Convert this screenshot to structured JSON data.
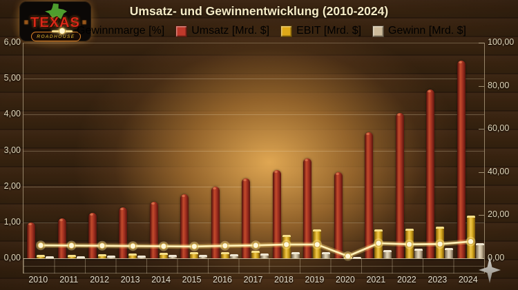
{
  "header": {
    "title": "Umsatz- und Gewinnentwicklung (2010-2024)"
  },
  "logo": {
    "brand": "TEXAS",
    "sub": "ROADHOUSE",
    "state_icon": "texas-state-icon"
  },
  "legend": [
    {
      "label": "Gewinnmarge [%]",
      "type": "line",
      "color": "#f2d98a",
      "slug": "gewinnmarge"
    },
    {
      "label": "Umsatz [Mrd. $]",
      "type": "box",
      "color": "#c0392b",
      "slug": "umsatz"
    },
    {
      "label": "EBIT [Mrd. $]",
      "type": "box",
      "color": "#dfa918",
      "slug": "ebit"
    },
    {
      "label": "Gewinn [Mrd. $]",
      "type": "box",
      "color": "#cdbb9b",
      "slug": "gewinn"
    }
  ],
  "axes": {
    "left_ticks": [
      "6,00",
      "5,00",
      "4,00",
      "3,00",
      "2,00",
      "1,00",
      "0,00"
    ],
    "right_ticks": [
      "100,00",
      "80,00",
      "60,00",
      "40,00",
      "20,00",
      "0,00"
    ],
    "left_range": [
      0,
      6
    ],
    "right_range": [
      0,
      100
    ],
    "grid": "horizontal"
  },
  "chart_data": {
    "type": "bar+line",
    "title": "Umsatz- und Gewinnentwicklung (2010-2024)",
    "categories": [
      2010,
      2011,
      2012,
      2013,
      2014,
      2015,
      2016,
      2017,
      2018,
      2019,
      2020,
      2021,
      2022,
      2023,
      2024
    ],
    "left_ylim": [
      0,
      6
    ],
    "right_ylim": [
      0,
      100
    ],
    "legend_position": "top",
    "series": [
      {
        "name": "Umsatz [Mrd. $]",
        "type": "bar",
        "axis": "left",
        "slug": "umsatz",
        "cls": "red",
        "color": "#b03a26",
        "values": [
          1.0,
          1.11,
          1.26,
          1.42,
          1.58,
          1.79,
          2.0,
          2.22,
          2.46,
          2.78,
          2.4,
          3.5,
          4.05,
          4.7,
          5.5
        ]
      },
      {
        "name": "EBIT [Mrd. $]",
        "type": "bar",
        "axis": "left",
        "slug": "ebit",
        "cls": "gold",
        "color": "#d9a81f",
        "values": [
          0.09,
          0.1,
          0.12,
          0.14,
          0.16,
          0.18,
          0.17,
          0.21,
          0.65,
          0.8,
          0.04,
          0.8,
          0.82,
          0.88,
          1.18
        ]
      },
      {
        "name": "Gewinn [Mrd. $]",
        "type": "bar",
        "axis": "left",
        "slug": "gewinn",
        "cls": "tan",
        "color": "#cdbb9b",
        "values": [
          0.05,
          0.06,
          0.07,
          0.08,
          0.09,
          0.1,
          0.11,
          0.13,
          0.17,
          0.18,
          0.03,
          0.23,
          0.26,
          0.29,
          0.42
        ]
      },
      {
        "name": "Gewinnmarge [%]",
        "type": "line",
        "axis": "right",
        "slug": "gewinnmarge",
        "color": "#ffefb5",
        "values": [
          6.0,
          5.9,
          5.8,
          5.7,
          5.6,
          5.5,
          5.8,
          6.0,
          6.4,
          6.4,
          1.0,
          7.0,
          6.5,
          6.6,
          7.8
        ]
      }
    ]
  },
  "cursor": {
    "shape": "four-point-star",
    "color": "#b5b2ab"
  }
}
